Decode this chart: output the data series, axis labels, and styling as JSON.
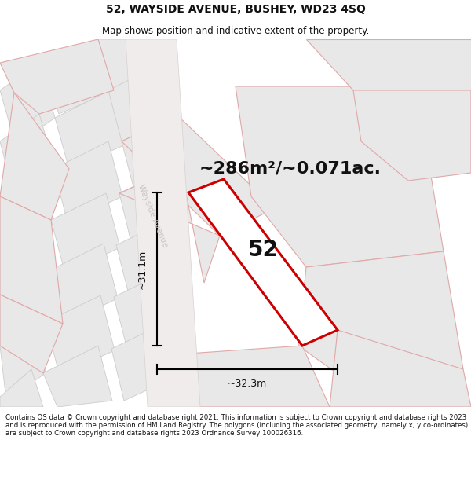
{
  "title": "52, WAYSIDE AVENUE, BUSHEY, WD23 4SQ",
  "subtitle": "Map shows position and indicative extent of the property.",
  "footer": "Contains OS data © Crown copyright and database right 2021. This information is subject to Crown copyright and database rights 2023 and is reproduced with the permission of HM Land Registry. The polygons (including the associated geometry, namely x, y co-ordinates) are subject to Crown copyright and database rights 2023 Ordnance Survey 100026316.",
  "area_text": "~286m²/~0.071ac.",
  "street_label": "Wayside Avenue",
  "property_number": "52",
  "dim_vertical": "~31.1m",
  "dim_horizontal": "~32.3m",
  "bg_color": "#ffffff",
  "map_bg": "#faf8f8",
  "highlight_color": "#cc0000",
  "dim_color": "#111111",
  "text_color": "#111111",
  "street_text_color": "#c8c4c4",
  "property_fill": "#ffffff",
  "plot_fill": "#e8e8e8",
  "plot_outline": "#e0a0a0",
  "plot_outline2": "#cccccc",
  "title_fontsize": 10,
  "subtitle_fontsize": 8.5,
  "area_fontsize": 16,
  "number_fontsize": 20,
  "dim_fontsize": 9,
  "footer_fontsize": 6.2
}
